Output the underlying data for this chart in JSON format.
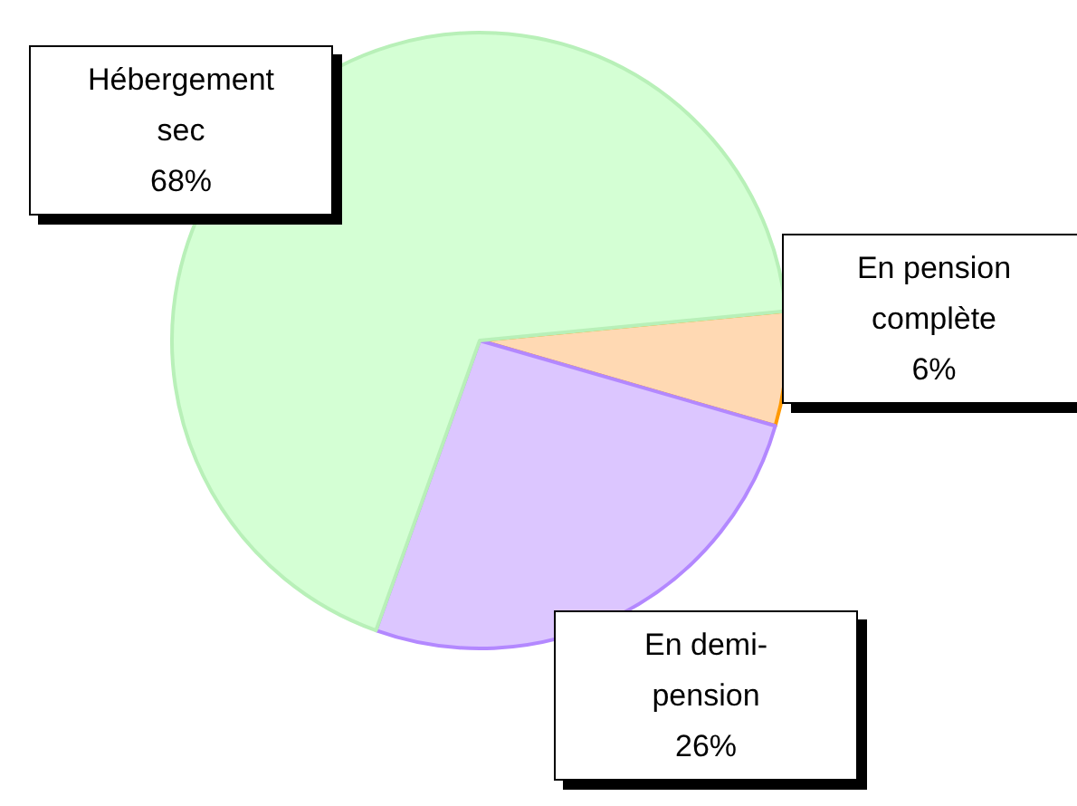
{
  "chart_data": {
    "type": "pie",
    "categories": [
      "En pension complète",
      "En demi-pension",
      "Hébergement sec"
    ],
    "values": [
      6,
      26,
      68
    ],
    "colors": [
      "#ffd9b3",
      "#dcc6ff",
      "#d4ffd4"
    ],
    "value_labels": [
      "6%",
      "26%",
      "68%"
    ],
    "legend": false
  }
}
